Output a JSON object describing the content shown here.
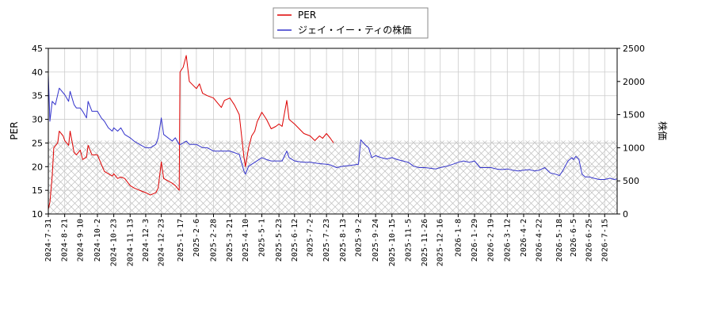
{
  "chart_data": {
    "type": "line",
    "ylabel_left": "PER",
    "ylabel_right": "株価",
    "ylim_left": [
      10,
      45
    ],
    "yticks_left": [
      10,
      15,
      20,
      25,
      30,
      35,
      40,
      45
    ],
    "ylim_right": [
      0,
      2500
    ],
    "yticks_right": [
      0,
      500,
      1000,
      1500,
      2000,
      2500
    ],
    "grid": true,
    "legend_position": "top-center",
    "hatched_band": {
      "from": 10,
      "to": 25.5,
      "axis": "left"
    },
    "x_ticks": [
      "2024-7-31",
      "2024-8-21",
      "2024-9-10",
      "2024-10-2",
      "2024-10-23",
      "2024-11-13",
      "2024-12-3",
      "2024-12-23",
      "2025-1-17",
      "2025-2-6",
      "2025-2-28",
      "2025-3-21",
      "2025-4-10",
      "2025-5-1",
      "2025-5-23",
      "2025-6-12",
      "2025-7-2",
      "2025-7-23",
      "2025-8-13",
      "2025-9-2",
      "2025-9-24",
      "2025-10-15",
      "2025-11-5",
      "2025-11-26",
      "2025-12-16",
      "2026-1-8",
      "2026-1-29",
      "2026-2-19",
      "2026-3-12",
      "2026-4-2",
      "2026-4-22",
      "2026-5-18",
      "2026-6-5",
      "2026-6-25",
      "2026-7-15"
    ],
    "series": [
      {
        "name": "PER",
        "axis": "left",
        "color": "#dd0000",
        "points": [
          [
            "2024-7-31",
            11.0
          ],
          [
            "2024-8-2",
            12.5
          ],
          [
            "2024-8-5",
            18.0
          ],
          [
            "2024-8-7",
            24.0
          ],
          [
            "2024-8-12",
            25.0
          ],
          [
            "2024-8-14",
            27.5
          ],
          [
            "2024-8-19",
            26.5
          ],
          [
            "2024-8-21",
            25.5
          ],
          [
            "2024-8-26",
            24.5
          ],
          [
            "2024-8-28",
            27.5
          ],
          [
            "2024-9-2",
            23.0
          ],
          [
            "2024-9-5",
            22.5
          ],
          [
            "2024-9-10",
            23.5
          ],
          [
            "2024-9-13",
            21.5
          ],
          [
            "2024-9-18",
            22.0
          ],
          [
            "2024-9-20",
            24.5
          ],
          [
            "2024-9-25",
            22.5
          ],
          [
            "2024-10-2",
            22.5
          ],
          [
            "2024-10-7",
            20.5
          ],
          [
            "2024-10-11",
            19.0
          ],
          [
            "2024-10-16",
            18.5
          ],
          [
            "2024-10-21",
            18.0
          ],
          [
            "2024-10-23",
            18.5
          ],
          [
            "2024-10-28",
            17.5
          ],
          [
            "2024-11-1",
            17.8
          ],
          [
            "2024-11-6",
            17.5
          ],
          [
            "2024-11-13",
            16.0
          ],
          [
            "2024-11-18",
            15.5
          ],
          [
            "2024-11-25",
            15.0
          ],
          [
            "2024-12-3",
            14.5
          ],
          [
            "2024-12-9",
            14.0
          ],
          [
            "2024-12-16",
            14.5
          ],
          [
            "2024-12-19",
            15.5
          ],
          [
            "2024-12-23",
            21.0
          ],
          [
            "2024-12-26",
            17.5
          ],
          [
            "2025-1-6",
            16.5
          ],
          [
            "2025-1-10",
            16.0
          ],
          [
            "2025-1-15",
            15.0
          ],
          [
            "2025-1-16",
            40.0
          ],
          [
            "2025-1-20",
            41.0
          ],
          [
            "2025-1-24",
            43.5
          ],
          [
            "2025-1-28",
            38.0
          ],
          [
            "2025-2-3",
            37.0
          ],
          [
            "2025-2-6",
            36.5
          ],
          [
            "2025-2-10",
            37.5
          ],
          [
            "2025-2-14",
            35.5
          ],
          [
            "2025-2-20",
            35.0
          ],
          [
            "2025-2-28",
            34.5
          ],
          [
            "2025-3-5",
            33.5
          ],
          [
            "2025-3-10",
            32.5
          ],
          [
            "2025-3-14",
            34.0
          ],
          [
            "2025-3-21",
            34.5
          ],
          [
            "2025-3-27",
            33.0
          ],
          [
            "2025-4-2",
            31.0
          ],
          [
            "2025-4-8",
            22.0
          ],
          [
            "2025-4-10",
            20.0
          ],
          [
            "2025-4-14",
            24.0
          ],
          [
            "2025-4-18",
            26.5
          ],
          [
            "2025-4-22",
            27.5
          ],
          [
            "2025-4-25",
            29.5
          ],
          [
            "2025-5-1",
            31.5
          ],
          [
            "2025-5-7",
            30.0
          ],
          [
            "2025-5-13",
            28.0
          ],
          [
            "2025-5-19",
            28.5
          ],
          [
            "2025-5-23",
            29.0
          ],
          [
            "2025-5-27",
            28.5
          ],
          [
            "2025-6-2",
            34.0
          ],
          [
            "2025-6-5",
            30.0
          ],
          [
            "2025-6-12",
            29.0
          ],
          [
            "2025-6-18",
            28.0
          ],
          [
            "2025-6-24",
            27.0
          ],
          [
            "2025-7-2",
            26.5
          ],
          [
            "2025-7-8",
            25.5
          ],
          [
            "2025-7-14",
            26.5
          ],
          [
            "2025-7-18",
            26.0
          ],
          [
            "2025-7-23",
            27.0
          ],
          [
            "2025-7-28",
            26.0
          ],
          [
            "2025-8-1",
            25.0
          ]
        ]
      },
      {
        "name": "ジェイ・イー・ティの株価",
        "axis": "right",
        "color": "#3333cc",
        "points": [
          [
            "2024-7-31",
            2100
          ],
          [
            "2024-8-2",
            1400
          ],
          [
            "2024-8-5",
            1700
          ],
          [
            "2024-8-9",
            1650
          ],
          [
            "2024-8-14",
            1900
          ],
          [
            "2024-8-21",
            1800
          ],
          [
            "2024-8-26",
            1700
          ],
          [
            "2024-8-28",
            1850
          ],
          [
            "2024-9-2",
            1650
          ],
          [
            "2024-9-5",
            1600
          ],
          [
            "2024-9-10",
            1600
          ],
          [
            "2024-9-13",
            1550
          ],
          [
            "2024-9-18",
            1450
          ],
          [
            "2024-9-20",
            1700
          ],
          [
            "2024-9-25",
            1550
          ],
          [
            "2024-10-2",
            1550
          ],
          [
            "2024-10-7",
            1450
          ],
          [
            "2024-10-11",
            1400
          ],
          [
            "2024-10-16",
            1300
          ],
          [
            "2024-10-21",
            1250
          ],
          [
            "2024-10-23",
            1300
          ],
          [
            "2024-10-28",
            1250
          ],
          [
            "2024-11-1",
            1300
          ],
          [
            "2024-11-6",
            1200
          ],
          [
            "2024-11-13",
            1150
          ],
          [
            "2024-11-18",
            1100
          ],
          [
            "2024-11-25",
            1050
          ],
          [
            "2024-12-3",
            1000
          ],
          [
            "2024-12-9",
            1000
          ],
          [
            "2024-12-16",
            1050
          ],
          [
            "2024-12-19",
            1150
          ],
          [
            "2024-12-23",
            1450
          ],
          [
            "2024-12-26",
            1200
          ],
          [
            "2025-1-6",
            1100
          ],
          [
            "2025-1-10",
            1150
          ],
          [
            "2025-1-15",
            1050
          ],
          [
            "2025-1-17",
            1050
          ],
          [
            "2025-1-24",
            1100
          ],
          [
            "2025-1-28",
            1050
          ],
          [
            "2025-2-6",
            1050
          ],
          [
            "2025-2-14",
            1000
          ],
          [
            "2025-2-20",
            1000
          ],
          [
            "2025-2-28",
            950
          ],
          [
            "2025-3-10",
            950
          ],
          [
            "2025-3-21",
            950
          ],
          [
            "2025-4-2",
            900
          ],
          [
            "2025-4-8",
            650
          ],
          [
            "2025-4-10",
            600
          ],
          [
            "2025-4-14",
            720
          ],
          [
            "2025-4-22",
            780
          ],
          [
            "2025-5-1",
            850
          ],
          [
            "2025-5-7",
            820
          ],
          [
            "2025-5-13",
            800
          ],
          [
            "2025-5-23",
            800
          ],
          [
            "2025-5-27",
            800
          ],
          [
            "2025-6-2",
            950
          ],
          [
            "2025-6-5",
            850
          ],
          [
            "2025-6-12",
            800
          ],
          [
            "2025-6-24",
            780
          ],
          [
            "2025-7-2",
            780
          ],
          [
            "2025-7-14",
            760
          ],
          [
            "2025-7-23",
            750
          ],
          [
            "2025-7-28",
            740
          ],
          [
            "2025-8-5",
            700
          ],
          [
            "2025-8-13",
            720
          ],
          [
            "2025-8-20",
            730
          ],
          [
            "2025-8-27",
            740
          ],
          [
            "2025-9-2",
            750
          ],
          [
            "2025-9-5",
            1120
          ],
          [
            "2025-9-10",
            1050
          ],
          [
            "2025-9-15",
            1000
          ],
          [
            "2025-9-19",
            850
          ],
          [
            "2025-9-24",
            880
          ],
          [
            "2025-10-1",
            850
          ],
          [
            "2025-10-8",
            830
          ],
          [
            "2025-10-15",
            850
          ],
          [
            "2025-10-22",
            820
          ],
          [
            "2025-10-29",
            800
          ],
          [
            "2025-11-5",
            780
          ],
          [
            "2025-11-12",
            720
          ],
          [
            "2025-11-19",
            700
          ],
          [
            "2025-11-26",
            700
          ],
          [
            "2025-12-3",
            690
          ],
          [
            "2025-12-10",
            680
          ],
          [
            "2025-12-16",
            700
          ],
          [
            "2025-12-24",
            720
          ],
          [
            "2026-1-1",
            750
          ],
          [
            "2026-1-8",
            780
          ],
          [
            "2026-1-15",
            800
          ],
          [
            "2026-1-22",
            780
          ],
          [
            "2026-1-29",
            800
          ],
          [
            "2026-2-5",
            700
          ],
          [
            "2026-2-12",
            700
          ],
          [
            "2026-2-19",
            700
          ],
          [
            "2026-2-26",
            680
          ],
          [
            "2026-3-5",
            670
          ],
          [
            "2026-3-12",
            680
          ],
          [
            "2026-3-19",
            660
          ],
          [
            "2026-3-26",
            650
          ],
          [
            "2026-4-2",
            660
          ],
          [
            "2026-4-9",
            670
          ],
          [
            "2026-4-16",
            650
          ],
          [
            "2026-4-22",
            660
          ],
          [
            "2026-4-29",
            700
          ],
          [
            "2026-5-6",
            620
          ],
          [
            "2026-5-13",
            600
          ],
          [
            "2026-5-18",
            580
          ],
          [
            "2026-5-22",
            650
          ],
          [
            "2026-5-29",
            800
          ],
          [
            "2026-6-3",
            850
          ],
          [
            "2026-6-5",
            820
          ],
          [
            "2026-6-8",
            870
          ],
          [
            "2026-6-12",
            820
          ],
          [
            "2026-6-16",
            600
          ],
          [
            "2026-6-20",
            560
          ],
          [
            "2026-6-25",
            560
          ],
          [
            "2026-7-1",
            540
          ],
          [
            "2026-7-8",
            520
          ],
          [
            "2026-7-15",
            520
          ],
          [
            "2026-7-22",
            540
          ],
          [
            "2026-7-27",
            520
          ],
          [
            "2026-7-31",
            530
          ]
        ]
      }
    ]
  }
}
